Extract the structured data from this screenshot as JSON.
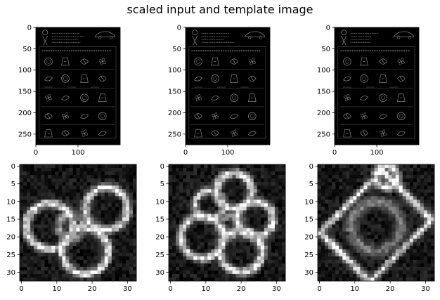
{
  "figure": {
    "title": "scaled input and template image",
    "background": "#ffffff"
  },
  "chart_data": [
    {
      "type": "heatmap",
      "content": "grayscale worksheet page (edge-detected)",
      "xlim": [
        0,
        200
      ],
      "ylim": [
        275,
        0
      ],
      "xticks": [
        0,
        100
      ],
      "yticks": [
        0,
        50,
        100,
        150,
        200,
        250
      ],
      "colormap": "gray"
    },
    {
      "type": "heatmap",
      "content": "grayscale worksheet page (edge-detected)",
      "xlim": [
        0,
        200
      ],
      "ylim": [
        275,
        0
      ],
      "xticks": [
        0,
        100
      ],
      "yticks": [
        0,
        50,
        100,
        150,
        200,
        250
      ],
      "colormap": "gray"
    },
    {
      "type": "heatmap",
      "content": "grayscale worksheet page (edge-detected)",
      "xlim": [
        0,
        200
      ],
      "ylim": [
        275,
        0
      ],
      "xticks": [
        0,
        100
      ],
      "yticks": [
        0,
        50,
        100,
        150,
        200,
        250
      ],
      "colormap": "gray"
    },
    {
      "type": "heatmap",
      "content": "33x33 template: two overlapping rings",
      "xlim": [
        -0.5,
        32.5
      ],
      "ylim": [
        32.5,
        -0.5
      ],
      "xticks": [
        0,
        10,
        20,
        30
      ],
      "yticks": [
        0,
        5,
        10,
        15,
        20,
        25,
        30
      ],
      "colormap": "gray"
    },
    {
      "type": "heatmap",
      "content": "33x33 template: flower-like outline",
      "xlim": [
        -0.5,
        32.5
      ],
      "ylim": [
        32.5,
        -0.5
      ],
      "xticks": [
        0,
        10,
        20,
        30
      ],
      "yticks": [
        0,
        5,
        10,
        15,
        20,
        25,
        30
      ],
      "colormap": "gray"
    },
    {
      "type": "heatmap",
      "content": "33x33 template: diagonal diamond outline",
      "xlim": [
        -0.5,
        32.5
      ],
      "ylim": [
        32.5,
        -0.5
      ],
      "xticks": [
        0,
        10,
        20,
        30
      ],
      "yticks": [
        0,
        5,
        10,
        15,
        20,
        25,
        30
      ],
      "colormap": "gray"
    }
  ]
}
